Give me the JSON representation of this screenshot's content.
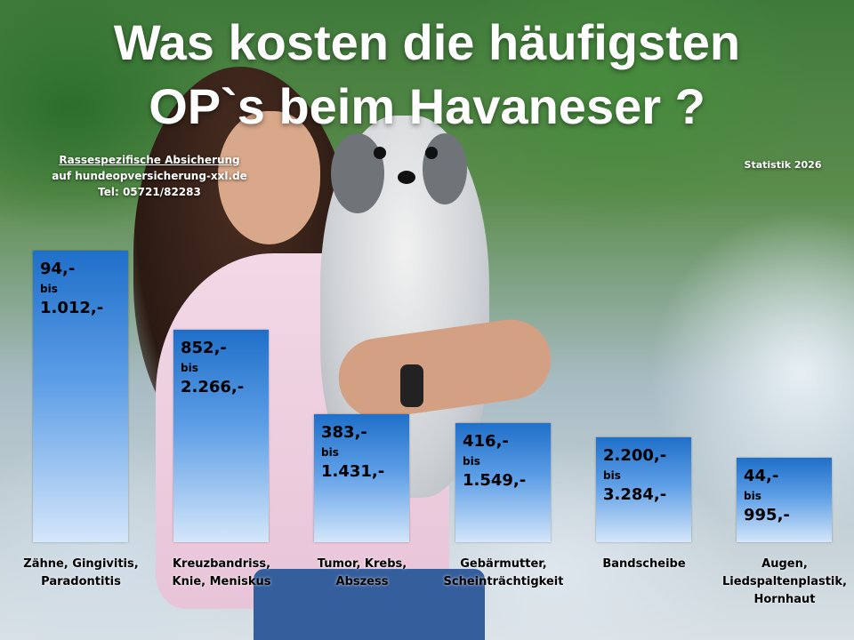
{
  "title_line1": "Was kosten die häufigsten",
  "title_line2": "OP`s beim Havaneser ?",
  "info": {
    "line1": "Rassespezifische  Absicherung",
    "line2": "auf hundeopversicherung-xxl.de",
    "line3": "Tel: 05721/82283"
  },
  "statistik_label": "Statistik 2026",
  "chart_data": {
    "type": "bar",
    "categories": [
      "Zähne, Gingivitis,\nParadontitis",
      "Kreuzbandriss,\nKnie, Meniskus",
      "Tumor, Krebs,\nAbszess",
      "Gebärmutter,\nScheinträchtigkeit",
      "Bandscheibe",
      "Augen,\nLiedspaltenplastik,\nHornhaut"
    ],
    "series": [
      {
        "values": [
          94,
          852,
          383,
          416,
          2200,
          44
        ]
      },
      {
        "values": [
          1012,
          2266,
          1431,
          1549,
          3284,
          995
        ]
      }
    ],
    "min_labels": [
      "94,-",
      "852,-",
      "383,-",
      "416,-",
      "2.200,-",
      "44,-"
    ],
    "bis_label": "bis",
    "max_labels": [
      "1.012,-",
      "2.266,-",
      "1.431,-",
      "1.549,-",
      "3.284,-",
      "995,-"
    ],
    "bar_levels": [
      1.0,
      0.73,
      0.44,
      0.41,
      0.36,
      0.29
    ],
    "bar_color": "#1f6fc9",
    "title": "",
    "xlabel": "",
    "ylabel": "",
    "grid": false
  }
}
